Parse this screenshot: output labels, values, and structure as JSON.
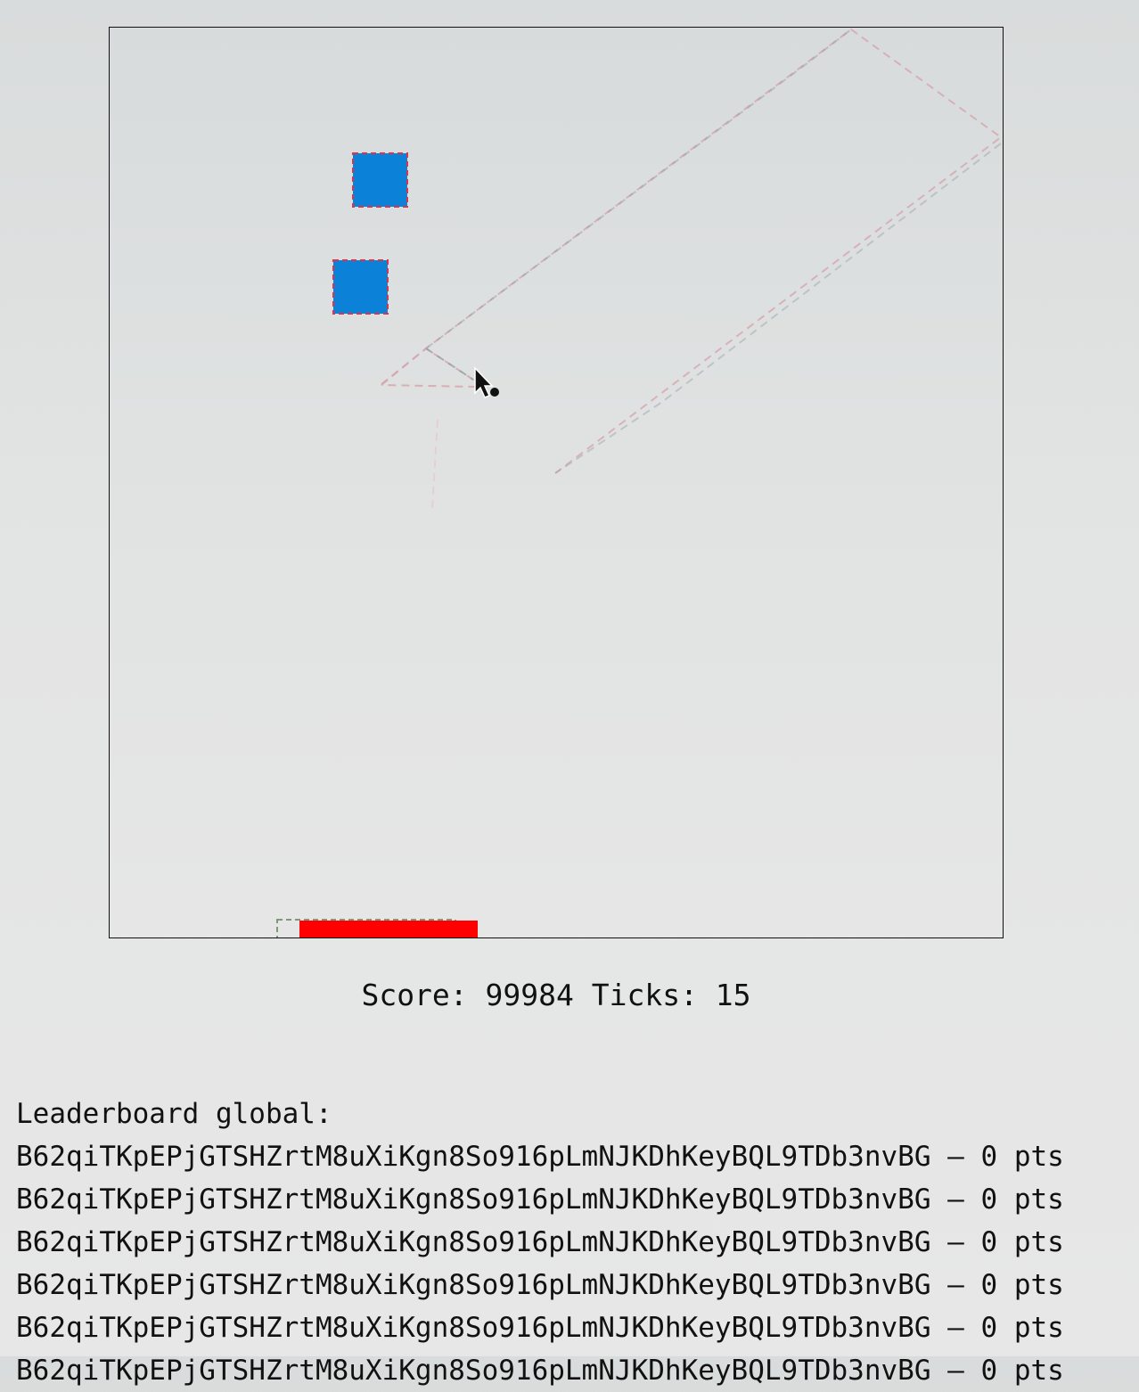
{
  "colors": {
    "block": "#0b82d8",
    "block_outline": "#d9364b",
    "paddle": "#ff0000",
    "trail_pink": "#d5a2aa",
    "trail_gray": "#9aa0a3",
    "board_border": "#111111"
  },
  "board": {
    "icons": [
      "blue-block-icon",
      "blue-block-icon",
      "red-paddle-icon",
      "mouse-cursor-icon"
    ]
  },
  "status": {
    "text": "Score: 99984 Ticks: 15"
  },
  "leaderboard": {
    "title": "Leaderboard global:",
    "rows": [
      "B62qiTKpEPjGTSHZrtM8uXiKgn8So916pLmNJKDhKeyBQL9TDb3nvBG — 0 pts",
      "B62qiTKpEPjGTSHZrtM8uXiKgn8So916pLmNJKDhKeyBQL9TDb3nvBG — 0 pts",
      "B62qiTKpEPjGTSHZrtM8uXiKgn8So916pLmNJKDhKeyBQL9TDb3nvBG — 0 pts",
      "B62qiTKpEPjGTSHZrtM8uXiKgn8So916pLmNJKDhKeyBQL9TDb3nvBG — 0 pts",
      "B62qiTKpEPjGTSHZrtM8uXiKgn8So916pLmNJKDhKeyBQL9TDb3nvBG — 0 pts",
      "B62qiTKpEPjGTSHZrtM8uXiKgn8So916pLmNJKDhKeyBQL9TDb3nvBG — 0 pts"
    ]
  }
}
